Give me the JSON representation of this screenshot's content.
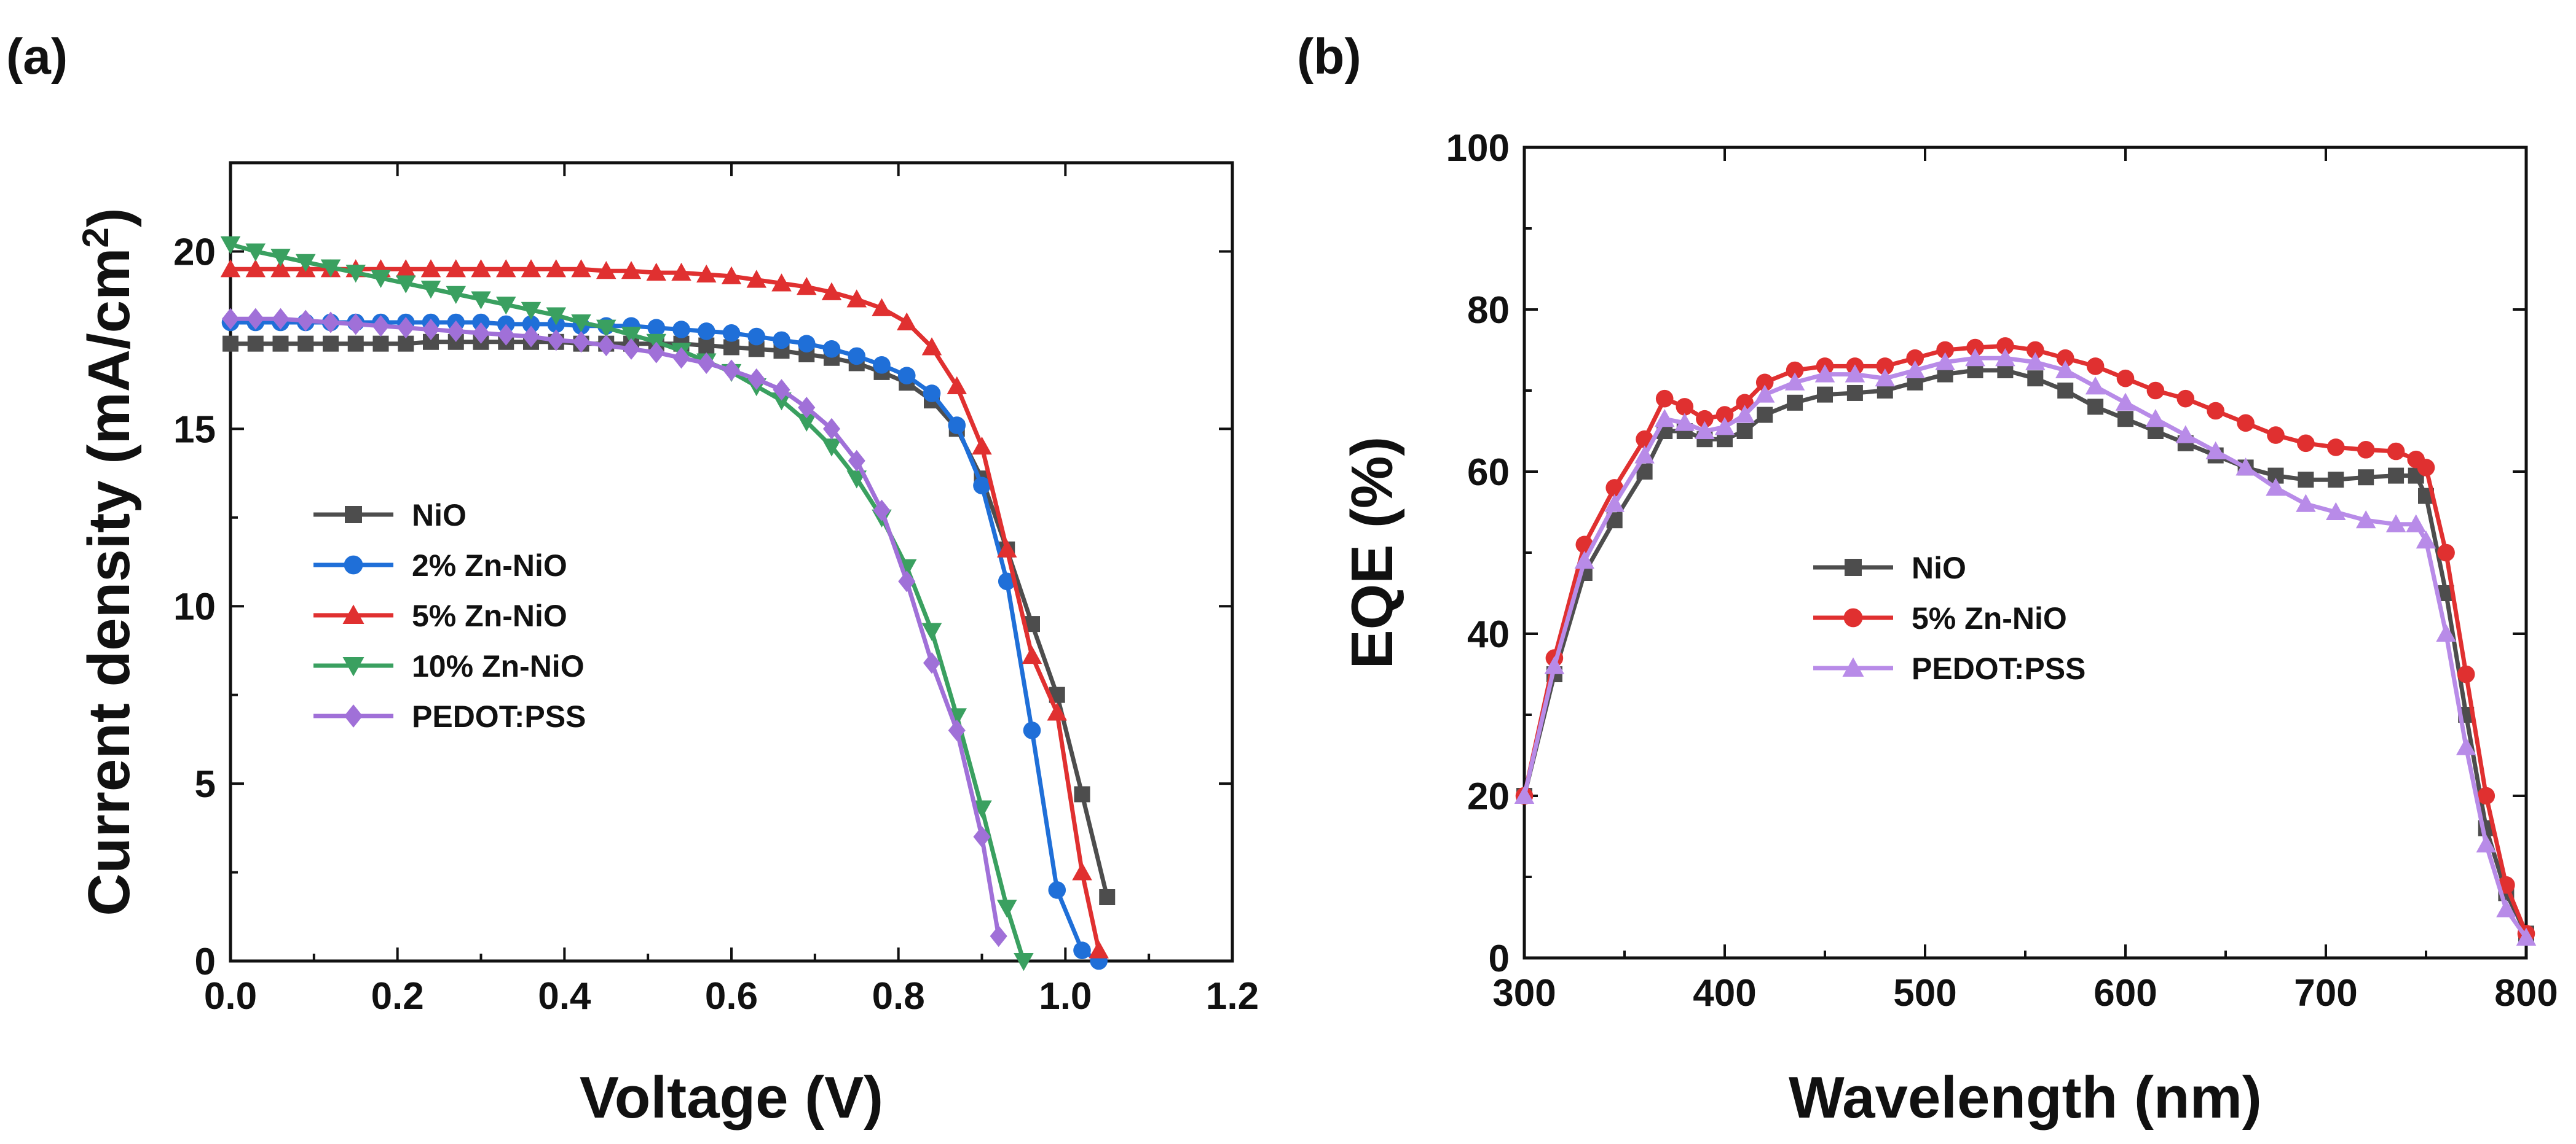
{
  "chart_data": [
    {
      "type": "line",
      "panel_label": "(a)",
      "xlabel": "Voltage (V)",
      "ylabel": "Current density (mA/cm",
      "ylabel_sup": "2",
      "ylabel_tail": ")",
      "xlim": [
        0.0,
        1.2
      ],
      "ylim": [
        0,
        22.5
      ],
      "xticks": [
        0.0,
        0.2,
        0.4,
        0.6,
        0.8,
        1.0,
        1.2
      ],
      "xtick_labels": [
        "0.0",
        "0.2",
        "0.4",
        "0.6",
        "0.8",
        "1.0",
        "1.2"
      ],
      "yticks": [
        0,
        5,
        10,
        15,
        20
      ],
      "ytick_labels": [
        "0",
        "5",
        "10",
        "15",
        "20"
      ],
      "grid": false,
      "legend_position": "center-left",
      "series": [
        {
          "name": "NiO",
          "color": "#4d4d4d",
          "marker": "square",
          "x": [
            0.0,
            0.03,
            0.06,
            0.09,
            0.12,
            0.15,
            0.18,
            0.21,
            0.24,
            0.27,
            0.3,
            0.33,
            0.36,
            0.39,
            0.42,
            0.45,
            0.48,
            0.51,
            0.54,
            0.57,
            0.6,
            0.63,
            0.66,
            0.69,
            0.72,
            0.75,
            0.78,
            0.81,
            0.84,
            0.87,
            0.9,
            0.93,
            0.96,
            0.99,
            1.02,
            1.05
          ],
          "y": [
            17.4,
            17.4,
            17.4,
            17.4,
            17.4,
            17.4,
            17.4,
            17.4,
            17.45,
            17.45,
            17.45,
            17.45,
            17.45,
            17.45,
            17.4,
            17.4,
            17.4,
            17.4,
            17.4,
            17.35,
            17.3,
            17.25,
            17.2,
            17.1,
            17.0,
            16.85,
            16.6,
            16.3,
            15.8,
            15.0,
            13.6,
            11.6,
            9.5,
            7.5,
            4.7,
            1.8
          ]
        },
        {
          "name": "2% Zn-NiO",
          "color": "#1f6fd8",
          "marker": "circle",
          "x": [
            0.0,
            0.03,
            0.06,
            0.09,
            0.12,
            0.15,
            0.18,
            0.21,
            0.24,
            0.27,
            0.3,
            0.33,
            0.36,
            0.39,
            0.42,
            0.45,
            0.48,
            0.51,
            0.54,
            0.57,
            0.6,
            0.63,
            0.66,
            0.69,
            0.72,
            0.75,
            0.78,
            0.81,
            0.84,
            0.87,
            0.9,
            0.93,
            0.96,
            0.99,
            1.02,
            1.04
          ],
          "y": [
            18.0,
            18.0,
            18.0,
            18.0,
            18.0,
            18.0,
            18.0,
            18.0,
            18.0,
            18.0,
            18.0,
            17.95,
            17.95,
            17.95,
            17.9,
            17.9,
            17.9,
            17.85,
            17.8,
            17.75,
            17.7,
            17.6,
            17.5,
            17.4,
            17.25,
            17.05,
            16.8,
            16.5,
            16.0,
            15.1,
            13.4,
            10.7,
            6.5,
            2.0,
            0.3,
            0.0
          ]
        },
        {
          "name": "5% Zn-NiO",
          "color": "#e03030",
          "marker": "triangle-up",
          "x": [
            0.0,
            0.03,
            0.06,
            0.09,
            0.12,
            0.15,
            0.18,
            0.21,
            0.24,
            0.27,
            0.3,
            0.33,
            0.36,
            0.39,
            0.42,
            0.45,
            0.48,
            0.51,
            0.54,
            0.57,
            0.6,
            0.63,
            0.66,
            0.69,
            0.72,
            0.75,
            0.78,
            0.81,
            0.84,
            0.87,
            0.9,
            0.93,
            0.96,
            0.99,
            1.02,
            1.04
          ],
          "y": [
            19.5,
            19.5,
            19.5,
            19.5,
            19.5,
            19.5,
            19.5,
            19.5,
            19.5,
            19.5,
            19.5,
            19.5,
            19.5,
            19.5,
            19.5,
            19.45,
            19.45,
            19.4,
            19.4,
            19.35,
            19.3,
            19.2,
            19.1,
            19.0,
            18.85,
            18.65,
            18.4,
            18.0,
            17.3,
            16.2,
            14.5,
            11.6,
            8.6,
            7.0,
            2.5,
            0.3
          ]
        },
        {
          "name": "10% Zn-NiO",
          "color": "#3aa060",
          "marker": "triangle-down",
          "x": [
            0.0,
            0.03,
            0.06,
            0.09,
            0.12,
            0.15,
            0.18,
            0.21,
            0.24,
            0.27,
            0.3,
            0.33,
            0.36,
            0.39,
            0.42,
            0.45,
            0.48,
            0.51,
            0.54,
            0.57,
            0.6,
            0.63,
            0.66,
            0.69,
            0.72,
            0.75,
            0.78,
            0.81,
            0.84,
            0.87,
            0.9,
            0.93,
            0.95
          ],
          "y": [
            20.2,
            20.0,
            19.85,
            19.7,
            19.55,
            19.4,
            19.25,
            19.1,
            18.95,
            18.8,
            18.65,
            18.5,
            18.35,
            18.2,
            18.0,
            17.85,
            17.65,
            17.45,
            17.2,
            16.9,
            16.6,
            16.2,
            15.8,
            15.2,
            14.5,
            13.6,
            12.5,
            11.1,
            9.3,
            6.9,
            4.3,
            1.5,
            0.0
          ]
        },
        {
          "name": "PEDOT:PSS",
          "color": "#a070d8",
          "marker": "diamond",
          "x": [
            0.0,
            0.03,
            0.06,
            0.09,
            0.12,
            0.15,
            0.18,
            0.21,
            0.24,
            0.27,
            0.3,
            0.33,
            0.36,
            0.39,
            0.42,
            0.45,
            0.48,
            0.51,
            0.54,
            0.57,
            0.6,
            0.63,
            0.66,
            0.69,
            0.72,
            0.75,
            0.78,
            0.81,
            0.84,
            0.87,
            0.9,
            0.92
          ],
          "y": [
            18.1,
            18.1,
            18.1,
            18.05,
            18.0,
            17.95,
            17.9,
            17.85,
            17.8,
            17.75,
            17.7,
            17.65,
            17.6,
            17.5,
            17.45,
            17.35,
            17.25,
            17.15,
            17.0,
            16.85,
            16.65,
            16.4,
            16.1,
            15.6,
            15.0,
            14.1,
            12.7,
            10.7,
            8.4,
            6.5,
            3.5,
            0.7
          ]
        }
      ]
    },
    {
      "type": "line",
      "panel_label": "(b)",
      "xlabel": "Wavelength (nm)",
      "ylabel": "EQE (%)",
      "xlim": [
        300,
        800
      ],
      "ylim": [
        0,
        100
      ],
      "xticks": [
        300,
        400,
        500,
        600,
        700,
        800
      ],
      "xtick_labels": [
        "300",
        "400",
        "500",
        "600",
        "700",
        "800"
      ],
      "yticks": [
        0,
        20,
        40,
        60,
        80,
        100
      ],
      "ytick_labels": [
        "0",
        "20",
        "40",
        "60",
        "80",
        "100"
      ],
      "grid": false,
      "legend_position": "center",
      "series": [
        {
          "name": "NiO",
          "color": "#4d4d4d",
          "marker": "square",
          "x": [
            300,
            315,
            330,
            345,
            360,
            370,
            380,
            390,
            400,
            410,
            420,
            435,
            450,
            465,
            480,
            495,
            510,
            525,
            540,
            555,
            570,
            585,
            600,
            615,
            630,
            645,
            660,
            675,
            690,
            705,
            720,
            735,
            745,
            750,
            760,
            770,
            780,
            790,
            800
          ],
          "y": [
            20,
            35,
            47.5,
            54,
            60,
            65,
            65,
            64,
            64,
            65,
            67,
            68.5,
            69.5,
            69.7,
            70,
            71,
            72,
            72.5,
            72.5,
            71.5,
            70,
            68,
            66.5,
            65,
            63.5,
            62,
            60.5,
            59.5,
            59,
            59,
            59.3,
            59.5,
            59.5,
            57,
            45,
            30,
            16,
            8,
            3
          ]
        },
        {
          "name": "5% Zn-NiO",
          "color": "#e03030",
          "marker": "circle",
          "x": [
            300,
            315,
            330,
            345,
            360,
            370,
            380,
            390,
            400,
            410,
            420,
            435,
            450,
            465,
            480,
            495,
            510,
            525,
            540,
            555,
            570,
            585,
            600,
            615,
            630,
            645,
            660,
            675,
            690,
            705,
            720,
            735,
            745,
            750,
            760,
            770,
            780,
            790,
            800
          ],
          "y": [
            20,
            37,
            51,
            58,
            64,
            69,
            68,
            66.5,
            67,
            68.5,
            71,
            72.5,
            73,
            73,
            73,
            74,
            75,
            75.3,
            75.5,
            75,
            74,
            73,
            71.5,
            70,
            69,
            67.5,
            66,
            64.5,
            63.5,
            63,
            62.7,
            62.5,
            61.5,
            60.5,
            50,
            35,
            20,
            9,
            3
          ]
        },
        {
          "name": "PEDOT:PSS",
          "color": "#b88be8",
          "marker": "triangle-up",
          "x": [
            300,
            315,
            330,
            345,
            360,
            370,
            380,
            390,
            400,
            410,
            420,
            435,
            450,
            465,
            480,
            495,
            510,
            525,
            540,
            555,
            570,
            585,
            600,
            615,
            630,
            645,
            660,
            675,
            690,
            705,
            720,
            735,
            745,
            750,
            760,
            770,
            780,
            790,
            800
          ],
          "y": [
            20,
            36,
            49,
            56,
            62,
            66.5,
            66,
            65,
            65.5,
            67,
            69.5,
            71,
            72,
            72,
            71.5,
            72.5,
            73.5,
            74,
            74,
            73.5,
            72.5,
            70.5,
            68.5,
            66.5,
            64.5,
            62.5,
            60.5,
            58,
            56,
            55,
            54,
            53.5,
            53.5,
            51.5,
            40,
            26,
            14,
            6,
            2.5
          ]
        }
      ]
    }
  ]
}
